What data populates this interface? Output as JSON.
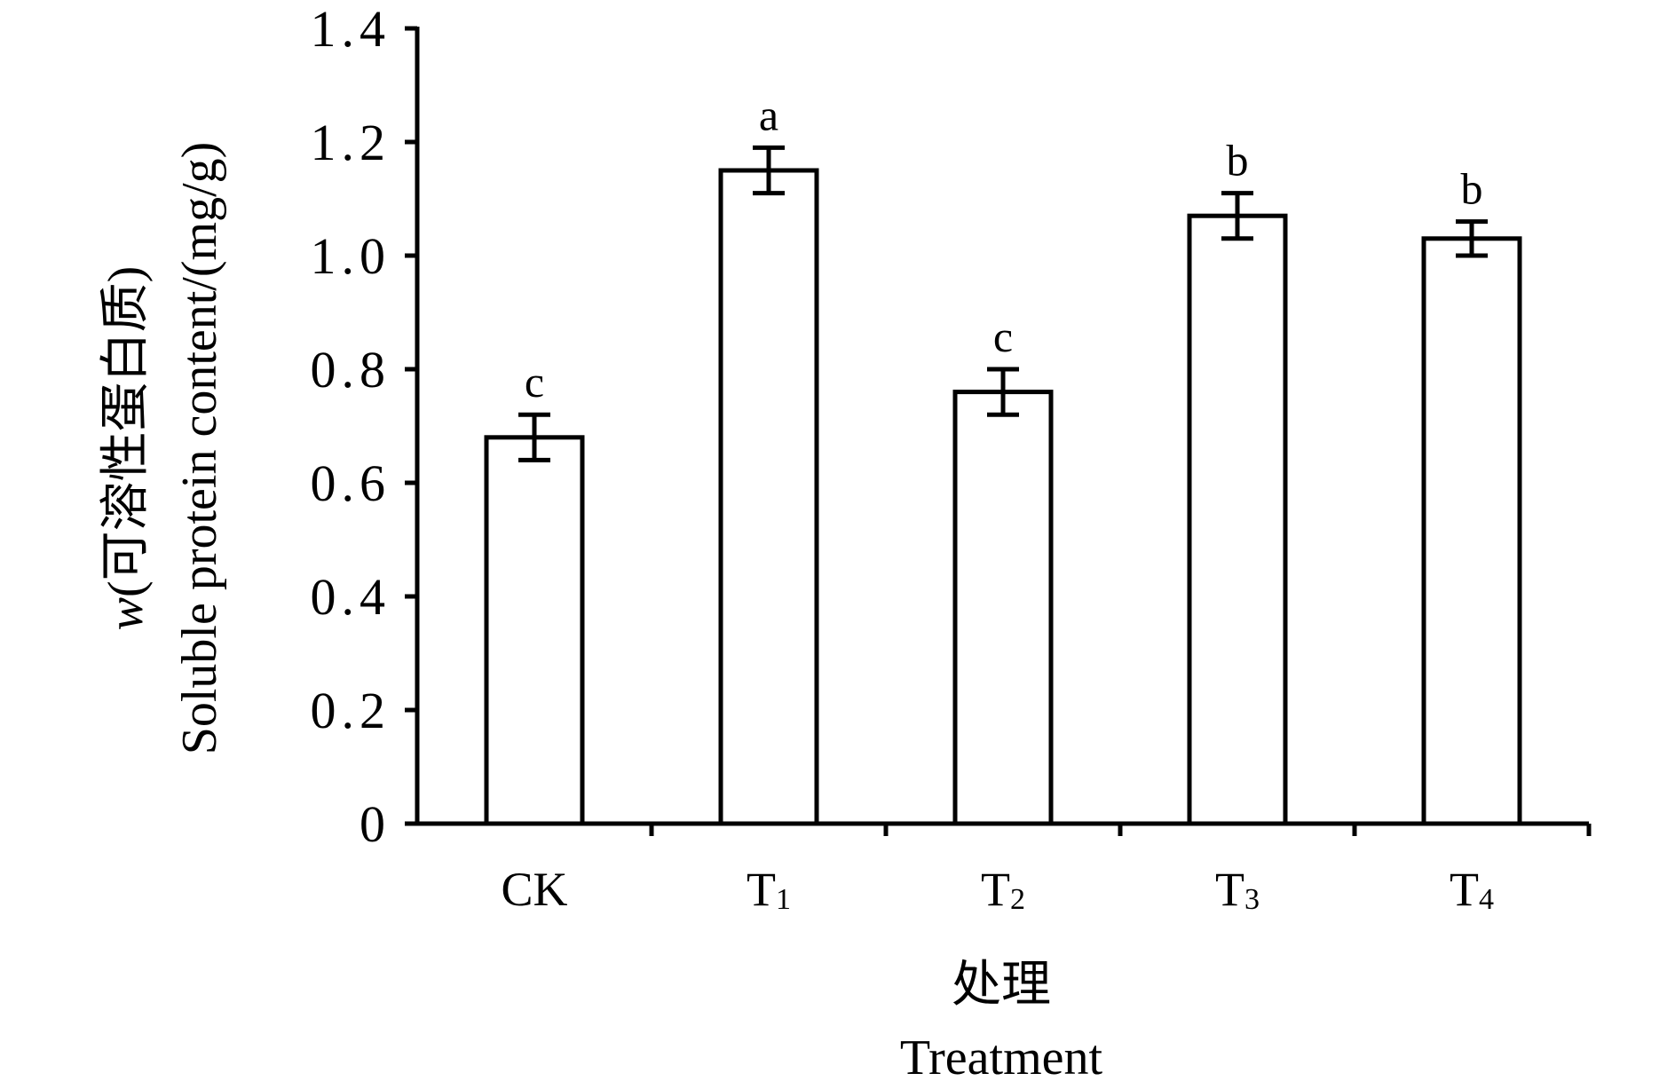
{
  "chart_data": {
    "type": "bar",
    "categories": [
      {
        "main": "CK",
        "sub": ""
      },
      {
        "main": "T",
        "sub": "1"
      },
      {
        "main": "T",
        "sub": "2"
      },
      {
        "main": "T",
        "sub": "3"
      },
      {
        "main": "T",
        "sub": "4"
      }
    ],
    "values": [
      0.68,
      1.15,
      0.76,
      1.07,
      1.03
    ],
    "errors": [
      0.04,
      0.04,
      0.04,
      0.04,
      0.03
    ],
    "significance": [
      "c",
      "a",
      "c",
      "b",
      "b"
    ],
    "ylim": [
      0,
      1.4
    ],
    "yticks": [
      {
        "value": 0,
        "label": "0"
      },
      {
        "value": 0.2,
        "label": "0.2"
      },
      {
        "value": 0.4,
        "label": "0.4"
      },
      {
        "value": 0.6,
        "label": "0.6"
      },
      {
        "value": 0.8,
        "label": "0.8"
      },
      {
        "value": 1.0,
        "label": "1.0"
      },
      {
        "value": 1.2,
        "label": "1.2"
      },
      {
        "value": 1.4,
        "label": "1.4"
      }
    ],
    "ylabel_line1_italic": "w",
    "ylabel_line1_rest": "(可溶性蛋白质)",
    "ylabel_line2": "Soluble protein content/(mg/g)",
    "xlabel_line1": "处理",
    "xlabel_line2": "Treatment",
    "bar_fill": "#ffffff",
    "bar_stroke": "#000000"
  }
}
